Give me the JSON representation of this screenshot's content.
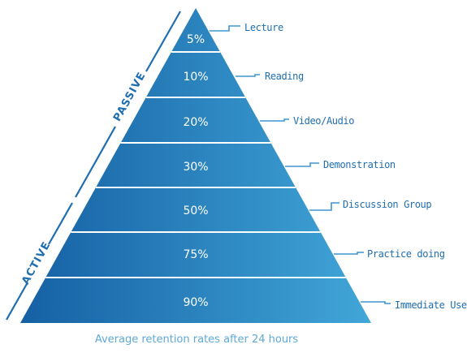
{
  "pyramid": {
    "levels": [
      {
        "percent": "5%",
        "label": "Lecture"
      },
      {
        "percent": "10%",
        "label": "Reading"
      },
      {
        "percent": "20%",
        "label": "Video/Audio"
      },
      {
        "percent": "30%",
        "label": "Demonstration"
      },
      {
        "percent": "50%",
        "label": "Discussion Group"
      },
      {
        "percent": "75%",
        "label": "Practice doing"
      },
      {
        "percent": "90%",
        "label": "Immediate Use"
      }
    ],
    "side_labels": {
      "passive": "PASSIVE",
      "active": "ACTIVE"
    },
    "caption": "Average retention rates after 24 hours"
  },
  "colors": {
    "fill_left": "#1560a3",
    "fill_right": "#41a6d8",
    "accent": "#1f6eb0",
    "separator": "#ffffff"
  }
}
